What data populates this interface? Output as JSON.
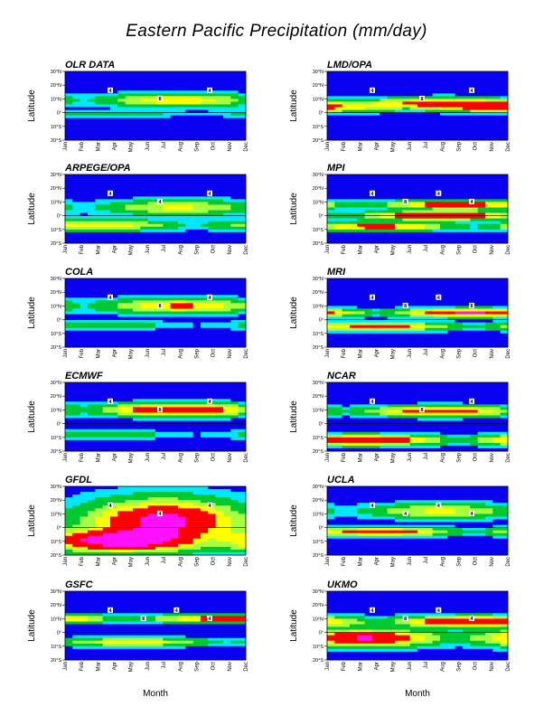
{
  "title": "Eastern Pacific Precipitation (mm/day)",
  "xlabel": "Month",
  "ylabel": "Latitude",
  "months": [
    "Jan",
    "Feb",
    "Mar",
    "Apr",
    "May",
    "Jun",
    "Jul",
    "Aug",
    "Sep",
    "Oct",
    "Nov",
    "Dec"
  ],
  "lat_ticks": [
    "30°N",
    "20°N",
    "10°N",
    "0°",
    "10°S",
    "20°S"
  ],
  "levels_mm_day": [
    1,
    2,
    4,
    6,
    8,
    12
  ],
  "level_colors": [
    "#0a00f0",
    "#00e8ff",
    "#00c830",
    "#a8ff40",
    "#ffff00",
    "#ff0000",
    "#ff10ff"
  ],
  "chart_data": [
    {
      "type": "heatmap",
      "name": "OLR DATA",
      "label_month": [
        "Apr",
        "Jul",
        "Jul"
      ],
      "contour_labels": [
        "4",
        "8",
        "4"
      ],
      "bands": [
        {
          "lat": 9,
          "width": 6,
          "peak": 7.5,
          "month": "Aug"
        },
        {
          "lat": -1,
          "width": 3,
          "peak": 3,
          "month": "Mar"
        }
      ]
    },
    {
      "type": "heatmap",
      "name": "LMD/OPA",
      "contour_labels": [
        "4",
        "8",
        "4"
      ],
      "bands": [
        {
          "lat": 7,
          "width": 5,
          "peak": 9,
          "month": "Aug"
        },
        {
          "lat": 4,
          "width": 5,
          "peak": 8,
          "month": "Dec"
        }
      ]
    },
    {
      "type": "heatmap",
      "name": "ARPEGE/OPA",
      "contour_labels": [
        "4",
        "4",
        "4"
      ],
      "bands": [
        {
          "lat": 6,
          "width": 7,
          "peak": 6,
          "month": "Aug"
        },
        {
          "lat": -7,
          "width": 5,
          "peak": 7,
          "month": "Mar"
        }
      ]
    },
    {
      "type": "heatmap",
      "name": "MPI",
      "contour_labels": [
        "4",
        "8",
        "4",
        "4"
      ],
      "bands": [
        {
          "lat": 8,
          "width": 4,
          "peak": 10,
          "month": "Sep"
        },
        {
          "lat": 0,
          "width": 4,
          "peak": 13,
          "month": "Aug"
        },
        {
          "lat": -8,
          "width": 4,
          "peak": 9,
          "month": "Apr"
        }
      ]
    },
    {
      "type": "heatmap",
      "name": "COLA",
      "contour_labels": [
        "4",
        "8",
        "4"
      ],
      "bands": [
        {
          "lat": 10,
          "width": 7,
          "peak": 8,
          "month": "Aug"
        },
        {
          "lat": -4,
          "width": 4,
          "peak": 3,
          "month": "Mar"
        }
      ]
    },
    {
      "type": "heatmap",
      "name": "MRI",
      "contour_labels": [
        "4",
        "8",
        "4",
        "8"
      ],
      "bands": [
        {
          "lat": 5,
          "width": 4,
          "peak": 12,
          "month": "Oct"
        },
        {
          "lat": -5,
          "width": 4,
          "peak": 9,
          "month": "Apr"
        }
      ]
    },
    {
      "type": "heatmap",
      "name": "ECMWF",
      "contour_labels": [
        "4",
        "8",
        "4"
      ],
      "bands": [
        {
          "lat": 10,
          "width": 6,
          "peak": 12,
          "month": "Aug"
        },
        {
          "lat": -8,
          "width": 4,
          "peak": 3,
          "month": "Mar"
        }
      ]
    },
    {
      "type": "heatmap",
      "name": "NCAR",
      "contour_labels": [
        "4",
        "8",
        "4"
      ],
      "bands": [
        {
          "lat": 9,
          "width": 5,
          "peak": 10,
          "month": "Aug"
        },
        {
          "lat": -12,
          "width": 5,
          "peak": 12,
          "month": "Mar"
        }
      ]
    },
    {
      "type": "heatmap",
      "name": "GFDL",
      "contour_labels": [
        "4",
        "4",
        "4"
      ],
      "bands": [
        {
          "lat": 5,
          "width": 20,
          "peak": 13,
          "month": "Jul"
        },
        {
          "lat": -10,
          "width": 10,
          "peak": 13,
          "month": "Apr"
        }
      ]
    },
    {
      "type": "heatmap",
      "name": "UCLA",
      "contour_labels": [
        "4",
        "4",
        "4",
        "4"
      ],
      "bands": [
        {
          "lat": 12,
          "width": 7,
          "peak": 6,
          "month": "Aug"
        },
        {
          "lat": -3,
          "width": 4,
          "peak": 10,
          "month": "Apr"
        }
      ]
    },
    {
      "type": "heatmap",
      "name": "GSFC",
      "contour_labels": [
        "4",
        "8",
        "4",
        "4"
      ],
      "bands": [
        {
          "lat": 10,
          "width": 4,
          "peak": 10,
          "month": "Nov"
        },
        {
          "lat": -7,
          "width": 4,
          "peak": 7,
          "month": "May"
        }
      ]
    },
    {
      "type": "heatmap",
      "name": "UKMO",
      "contour_labels": [
        "4",
        "8",
        "4",
        "4"
      ],
      "bands": [
        {
          "lat": -4,
          "width": 8,
          "peak": 12,
          "month": "Mar"
        },
        {
          "lat": 8,
          "width": 5,
          "peak": 12,
          "month": "Oct"
        }
      ]
    }
  ]
}
